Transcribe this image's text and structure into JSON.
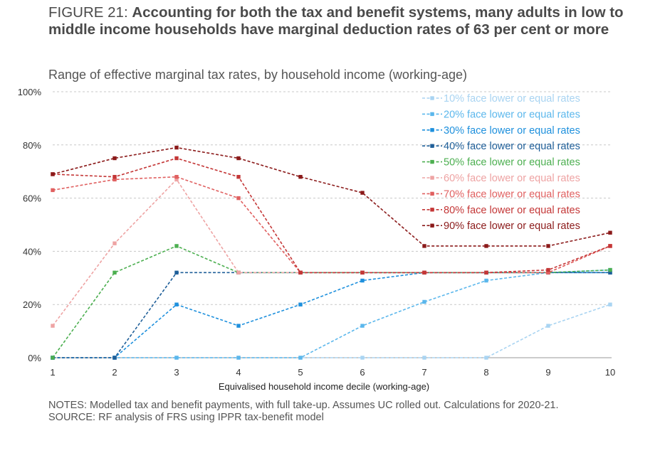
{
  "title_prefix": "FIGURE 21: ",
  "title_main": "Accounting for both the tax and benefit systems, many adults in low to middle income households have marginal deduction rates of 63 per cent or more",
  "subtitle": "Range of effective marginal tax rates, by household income (working-age)",
  "notes": "NOTES: Modelled tax and benefit payments, with full take-up. Assumes UC rolled out. Calculations for 2020-21.",
  "source": "SOURCE: RF analysis of FRS using IPPR tax-benefit model",
  "chart_data": {
    "type": "line",
    "xlabel": "Equivalised household income decile (working-age)",
    "ylabel": "",
    "categories": [
      "1",
      "2",
      "3",
      "4",
      "5",
      "6",
      "7",
      "8",
      "9",
      "10"
    ],
    "ylim": [
      0,
      100
    ],
    "yticks": [
      "0%",
      "20%",
      "40%",
      "60%",
      "80%",
      "100%"
    ],
    "yticks_values": [
      0,
      20,
      40,
      60,
      80,
      100
    ],
    "grid": "horizontal dashed",
    "legend_position": "top-right",
    "series": [
      {
        "name": "10% face lower or equal rates",
        "color": "#a9d4f2",
        "values": [
          0,
          0,
          0,
          0,
          0,
          0,
          0,
          0,
          12,
          20
        ]
      },
      {
        "name": "20% face lower or equal rates",
        "color": "#5bb7ec",
        "values": [
          0,
          0,
          0,
          0,
          0,
          12,
          21,
          29,
          32,
          33
        ]
      },
      {
        "name": "30% face lower or equal rates",
        "color": "#1e90dd",
        "values": [
          0,
          0,
          20,
          12,
          20,
          29,
          32,
          32,
          32,
          32
        ]
      },
      {
        "name": "40% face lower or equal rates",
        "color": "#1f5f99",
        "values": [
          0,
          0,
          32,
          32,
          32,
          32,
          32,
          32,
          32,
          32
        ]
      },
      {
        "name": "50% face lower or equal rates",
        "color": "#4caf50",
        "values": [
          0,
          32,
          42,
          32,
          32,
          32,
          32,
          32,
          32,
          33
        ]
      },
      {
        "name": "60% face lower or equal rates",
        "color": "#eea3a3",
        "values": [
          12,
          43,
          67,
          32,
          32,
          32,
          32,
          32,
          32,
          42
        ]
      },
      {
        "name": "70% face lower or equal rates",
        "color": "#e06060",
        "values": [
          63,
          67,
          68,
          60,
          32,
          32,
          32,
          32,
          32,
          42
        ]
      },
      {
        "name": "80% face lower or equal rates",
        "color": "#c43737",
        "values": [
          69,
          68,
          75,
          68,
          32,
          32,
          32,
          32,
          33,
          42
        ]
      },
      {
        "name": "90% face lower or equal rates",
        "color": "#8b1a1a",
        "values": [
          69,
          75,
          79,
          75,
          68,
          62,
          42,
          42,
          42,
          47
        ]
      }
    ]
  }
}
